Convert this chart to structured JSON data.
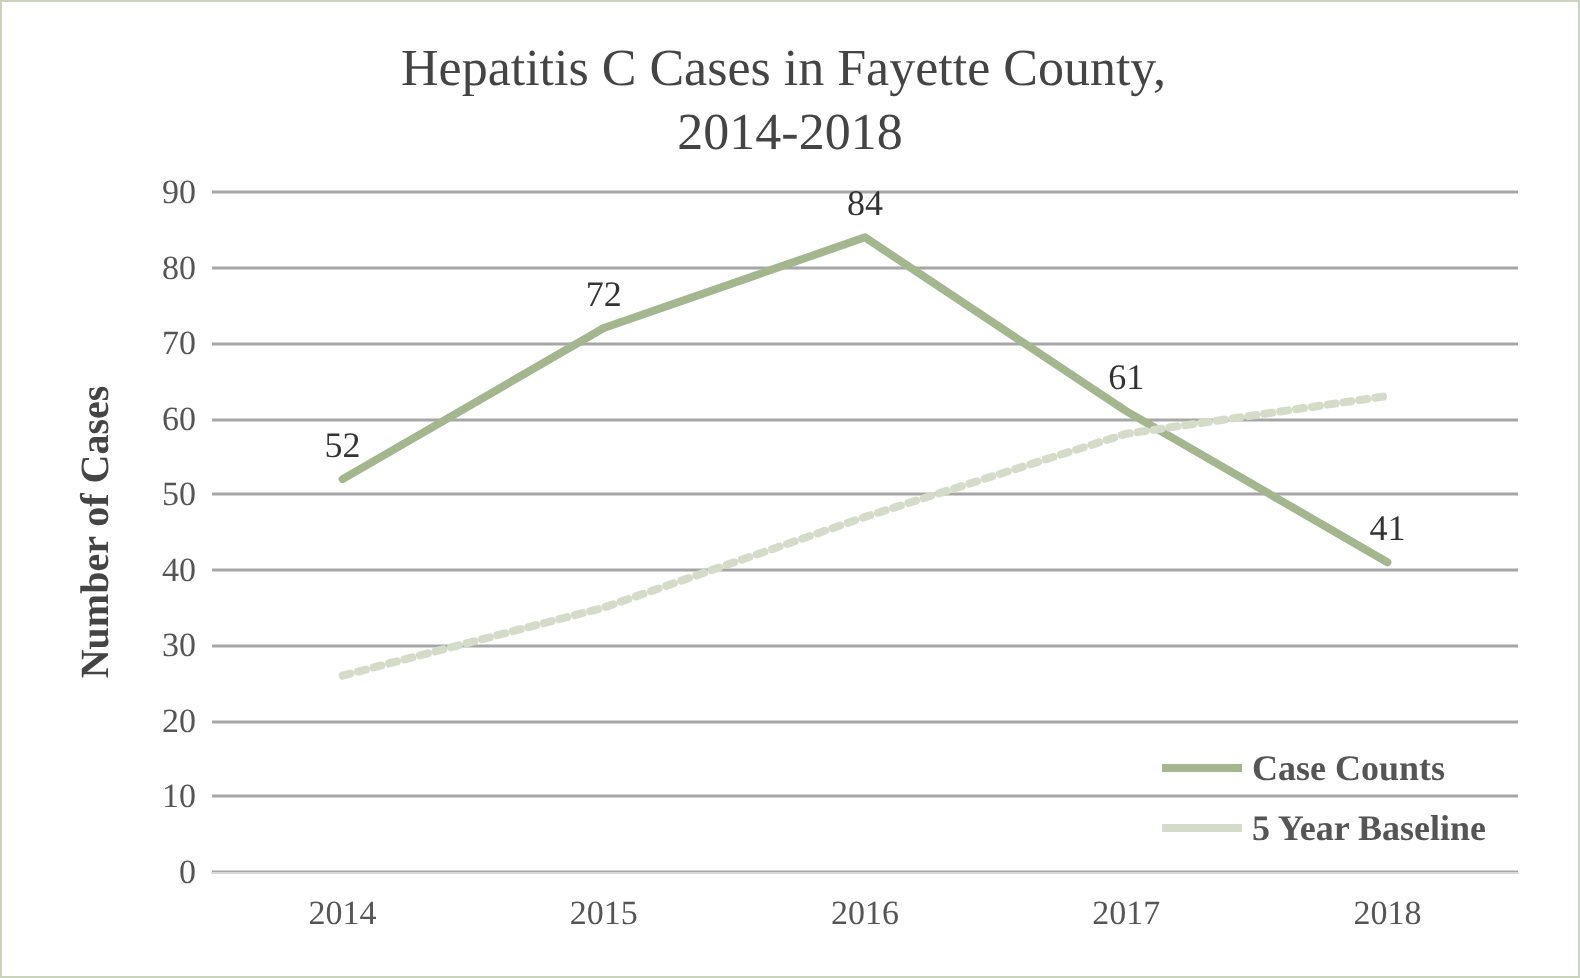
{
  "chart_data": {
    "type": "line",
    "title": "Hepatitis C Cases in Fayette County, 2014-2018",
    "ylabel": "Number of Cases",
    "categories": [
      "2014",
      "2015",
      "2016",
      "2017",
      "2018"
    ],
    "series": [
      {
        "name": "Case Counts",
        "color": "#a3b68e",
        "values": [
          52,
          72,
          84,
          61,
          41
        ],
        "value_labels": [
          "52",
          "72",
          "84",
          "61",
          "41"
        ],
        "line_style": "solid"
      },
      {
        "name": "5 Year Baseline",
        "color": "#d4dcc9",
        "values": [
          26,
          35,
          47,
          58,
          63
        ],
        "line_style": "dotted"
      }
    ],
    "ylim": [
      0,
      90
    ],
    "yticks": [
      0,
      10,
      20,
      30,
      40,
      50,
      60,
      70,
      80,
      90
    ],
    "grid": "y",
    "legend": "bottom right",
    "marker": "none"
  }
}
